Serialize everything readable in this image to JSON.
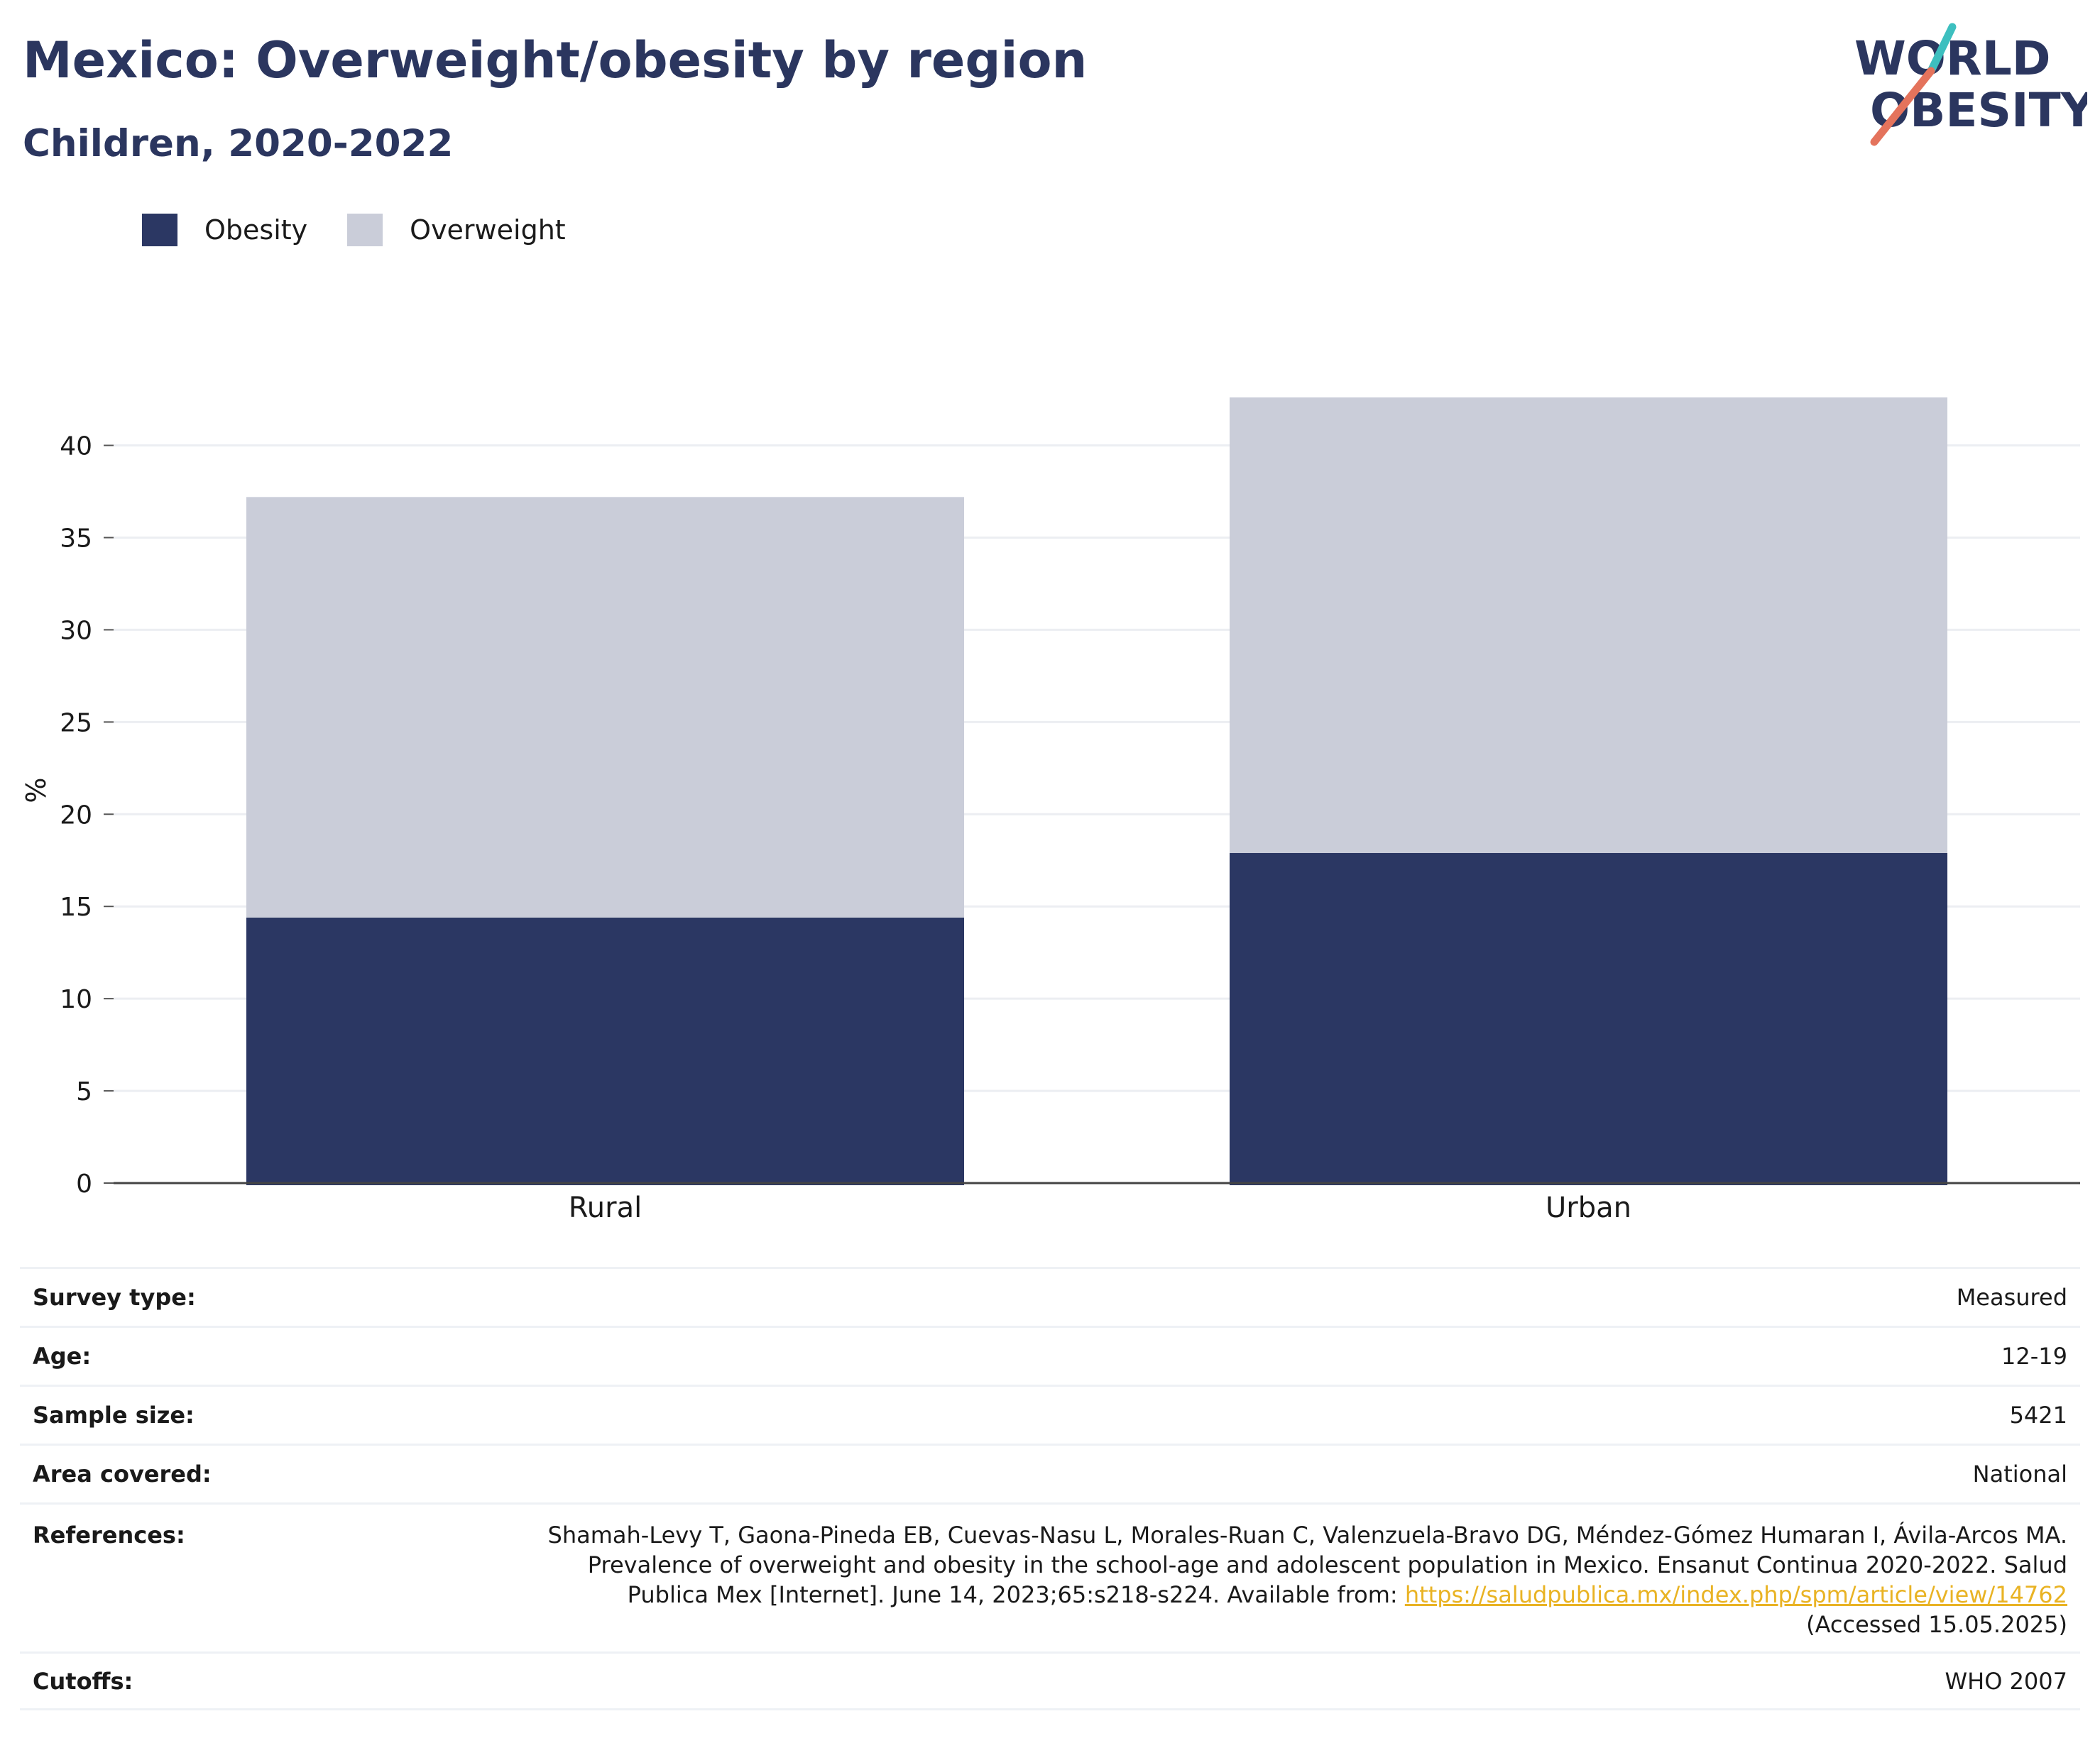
{
  "header": {
    "title": "Mexico: Overweight/obesity by region",
    "subtitle": "Children, 2020-2022"
  },
  "logo": {
    "line1": "WORLD",
    "line2": "OBESITY",
    "stroke_colors": [
      "#3dbfbf",
      "#e4735c"
    ]
  },
  "legend": {
    "items": [
      {
        "label": "Obesity",
        "color": "#2b3763"
      },
      {
        "label": "Overweight",
        "color": "#cacdd9"
      }
    ]
  },
  "chart_data": {
    "type": "bar",
    "stacked": true,
    "categories": [
      "Rural",
      "Urban"
    ],
    "series": [
      {
        "name": "Obesity",
        "values": [
          14.4,
          17.9
        ],
        "color": "#2b3763"
      },
      {
        "name": "Overweight",
        "values": [
          22.8,
          24.7
        ],
        "color": "#cacdd9"
      }
    ],
    "ylabel": "%",
    "ylim": [
      0,
      42.6
    ],
    "yticks": [
      0,
      5,
      10,
      15,
      20,
      25,
      30,
      35,
      40
    ],
    "grid": true,
    "legend_position": "top-left"
  },
  "info": {
    "rows": [
      {
        "key": "Survey type:",
        "value": "Measured"
      },
      {
        "key": "Age:",
        "value": "12-19"
      },
      {
        "key": "Sample size:",
        "value": "5421"
      },
      {
        "key": "Area covered:",
        "value": "National"
      }
    ],
    "references": {
      "key": "References:",
      "text": "Shamah-Levy T, Gaona-Pineda EB, Cuevas-Nasu L, Morales-Ruan C, Valenzuela-Bravo DG, Méndez-Gómez Humaran I, Ávila-Arcos MA. Prevalence of overweight and obesity in the school-age and adolescent population in Mexico. Ensanut Continua 2020-2022. Salud Publica Mex [Internet]. June 14, 2023;65:s218-s224. Available from:",
      "link": "https://saludpublica.mx/index.php/spm/article/view/14762",
      "accessed": "(Accessed 15.05.2025)"
    },
    "cutoffs": {
      "key": "Cutoffs:",
      "value": "WHO 2007"
    }
  }
}
